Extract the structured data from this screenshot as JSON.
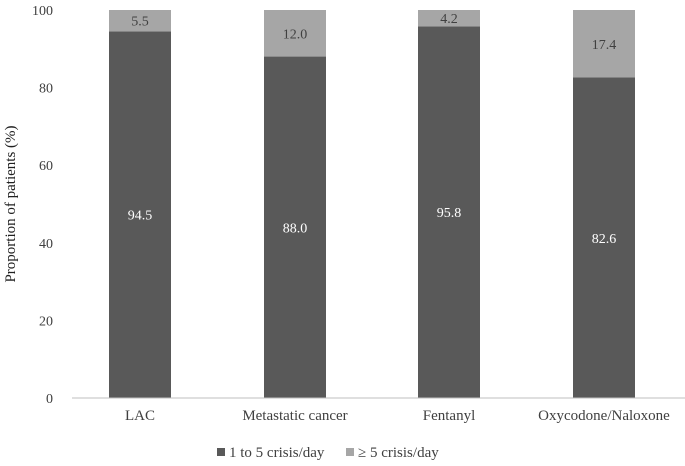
{
  "chart_data": {
    "type": "bar",
    "stacked": true,
    "title": "",
    "xlabel": "",
    "ylabel": "Proportion of patients (%)",
    "ylim": [
      0,
      100
    ],
    "yticks": [
      0,
      20,
      40,
      60,
      80,
      100
    ],
    "categories": [
      "LAC",
      "Metastatic cancer",
      "Fentanyl",
      "Oxycodone/Naloxone"
    ],
    "series": [
      {
        "name": "1 to 5 crisis/day",
        "values": [
          94.5,
          88.0,
          95.8,
          82.6
        ],
        "color": "#595959",
        "labels": [
          "94.5",
          "88.0",
          "95.8",
          "82.6"
        ]
      },
      {
        "name": "≥ 5 crisis/day",
        "values": [
          5.5,
          12.0,
          4.2,
          17.4
        ],
        "color": "#a6a6a6",
        "labels": [
          "5.5",
          "12.0",
          "4.2",
          "17.4"
        ]
      }
    ],
    "legend": "bottom",
    "grid": false
  }
}
